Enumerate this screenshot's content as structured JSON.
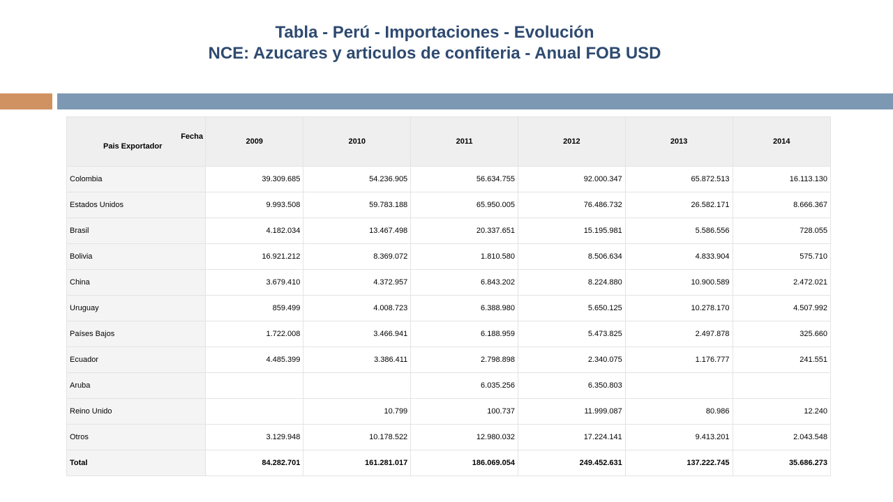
{
  "title": {
    "line1": "Tabla - Perú - Importaciones - Evolución",
    "line2": "NCE: Azucares y articulos de confiteria - Anual FOB USD"
  },
  "colors": {
    "title": "#2e4a70",
    "band_left": "#d19262",
    "band_right": "#7d98b3",
    "header_bg": "#efefef"
  },
  "table": {
    "corner_top": "Fecha",
    "corner_bottom": "Pais Exportador",
    "years": [
      "2009",
      "2010",
      "2011",
      "2012",
      "2013",
      "2014"
    ],
    "rows": [
      {
        "country": "Colombia",
        "values": [
          "39.309.685",
          "54.236.905",
          "56.634.755",
          "92.000.347",
          "65.872.513",
          "16.113.130"
        ]
      },
      {
        "country": "Estados Unidos",
        "values": [
          "9.993.508",
          "59.783.188",
          "65.950.005",
          "76.486.732",
          "26.582.171",
          "8.666.367"
        ]
      },
      {
        "country": "Brasil",
        "values": [
          "4.182.034",
          "13.467.498",
          "20.337.651",
          "15.195.981",
          "5.586.556",
          "728.055"
        ]
      },
      {
        "country": "Bolivia",
        "values": [
          "16.921.212",
          "8.369.072",
          "1.810.580",
          "8.506.634",
          "4.833.904",
          "575.710"
        ]
      },
      {
        "country": "China",
        "values": [
          "3.679.410",
          "4.372.957",
          "6.843.202",
          "8.224.880",
          "10.900.589",
          "2.472.021"
        ]
      },
      {
        "country": "Uruguay",
        "values": [
          "859.499",
          "4.008.723",
          "6.388.980",
          "5.650.125",
          "10.278.170",
          "4.507.992"
        ]
      },
      {
        "country": "Países Bajos",
        "values": [
          "1.722.008",
          "3.466.941",
          "6.188.959",
          "5.473.825",
          "2.497.878",
          "325.660"
        ]
      },
      {
        "country": "Ecuador",
        "values": [
          "4.485.399",
          "3.386.411",
          "2.798.898",
          "2.340.075",
          "1.176.777",
          "241.551"
        ]
      },
      {
        "country": "Aruba",
        "values": [
          "",
          "",
          "6.035.256",
          "6.350.803",
          "",
          ""
        ]
      },
      {
        "country": "Reino Unido",
        "values": [
          "",
          "10.799",
          "100.737",
          "11.999.087",
          "80.986",
          "12.240"
        ]
      },
      {
        "country": "Otros",
        "values": [
          "3.129.948",
          "10.178.522",
          "12.980.032",
          "17.224.141",
          "9.413.201",
          "2.043.548"
        ]
      }
    ],
    "total": {
      "label": "Total",
      "values": [
        "84.282.701",
        "161.281.017",
        "186.069.054",
        "249.452.631",
        "137.222.745",
        "35.686.273"
      ]
    }
  }
}
